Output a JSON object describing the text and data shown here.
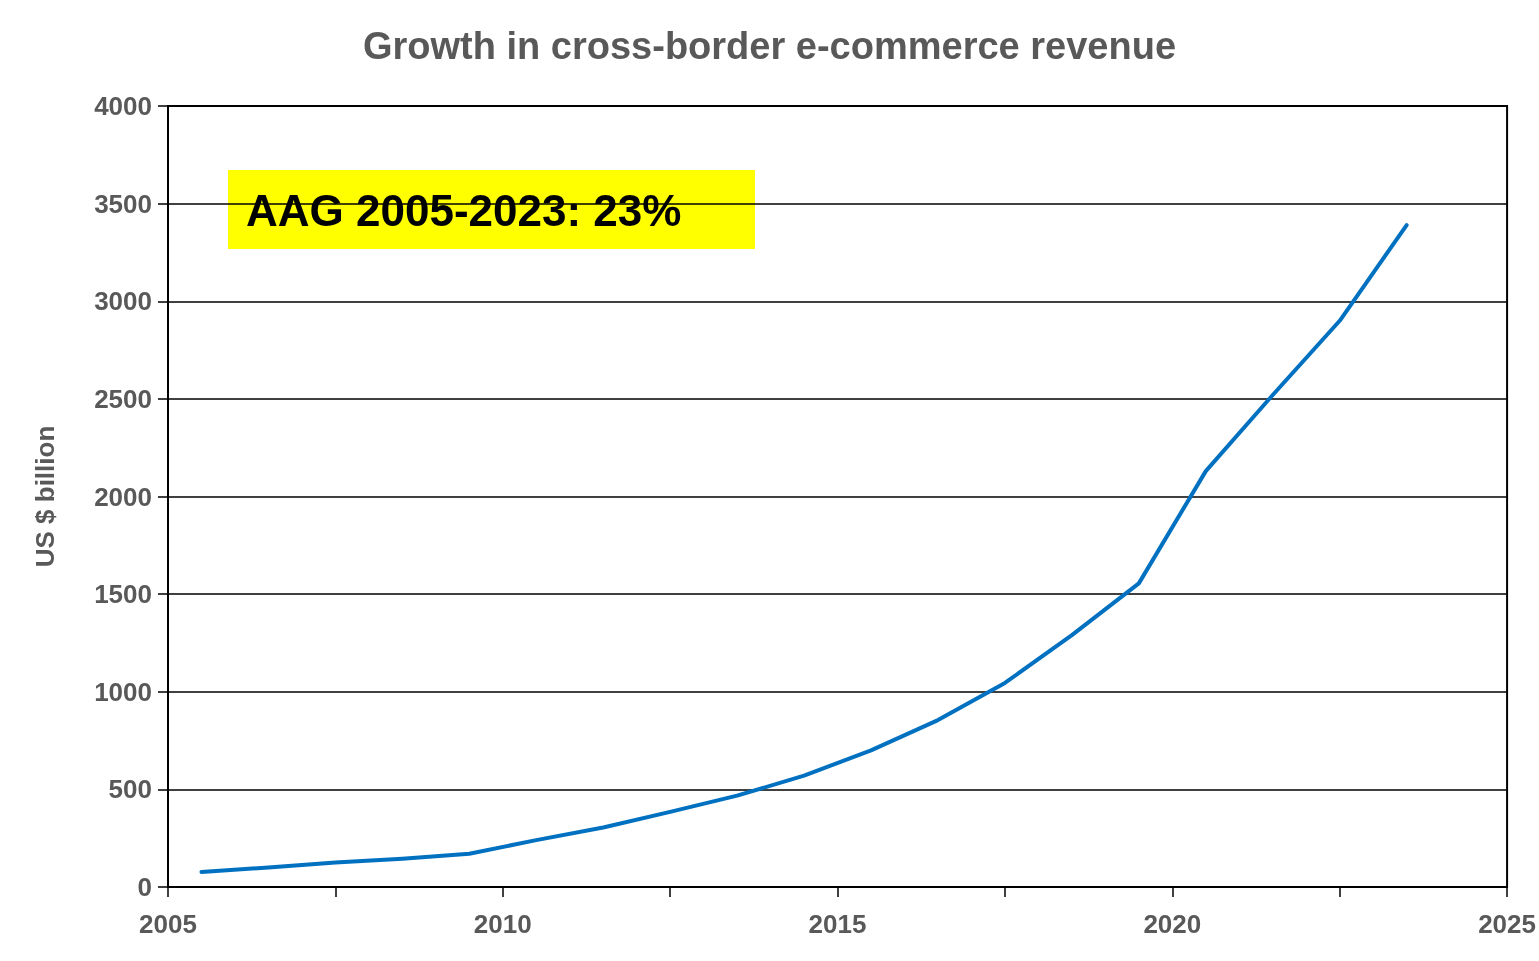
{
  "chart_data": {
    "type": "line",
    "title": "Growth in cross-border e-commerce revenue",
    "ylabel": "US $ billion",
    "x": [
      2005.5,
      2006.5,
      2007.5,
      2008.5,
      2009.5,
      2010.5,
      2011.5,
      2012.5,
      2013.5,
      2014.5,
      2015.5,
      2016.5,
      2017.5,
      2018.5,
      2019.5,
      2020.5,
      2021.5,
      2022.5,
      2023.5
    ],
    "series": [
      {
        "color": "#0070c0",
        "values": [
          77,
          100,
          125,
          145,
          170,
          240,
          305,
          385,
          468,
          570,
          700,
          855,
          1045,
          1290,
          1555,
          2130,
          2520,
          2900,
          3390
        ]
      }
    ],
    "xlim": [
      2005,
      2025
    ],
    "xticks": [
      2005,
      {
        "value": 2007.5,
        "label": null
      },
      2010,
      {
        "value": 2012.5,
        "label": null
      },
      2015,
      {
        "value": 2017.5,
        "label": null
      },
      2020,
      {
        "value": 2022.5,
        "label": null
      },
      2025
    ],
    "ylim": [
      0,
      4000
    ],
    "yticks": [
      0,
      500,
      1000,
      1500,
      2000,
      2500,
      3000,
      3500,
      4000
    ],
    "grid": "y",
    "marker": "none",
    "line_style": "solid",
    "annotations": [
      "AAG 2005-2023: 23%"
    ]
  }
}
